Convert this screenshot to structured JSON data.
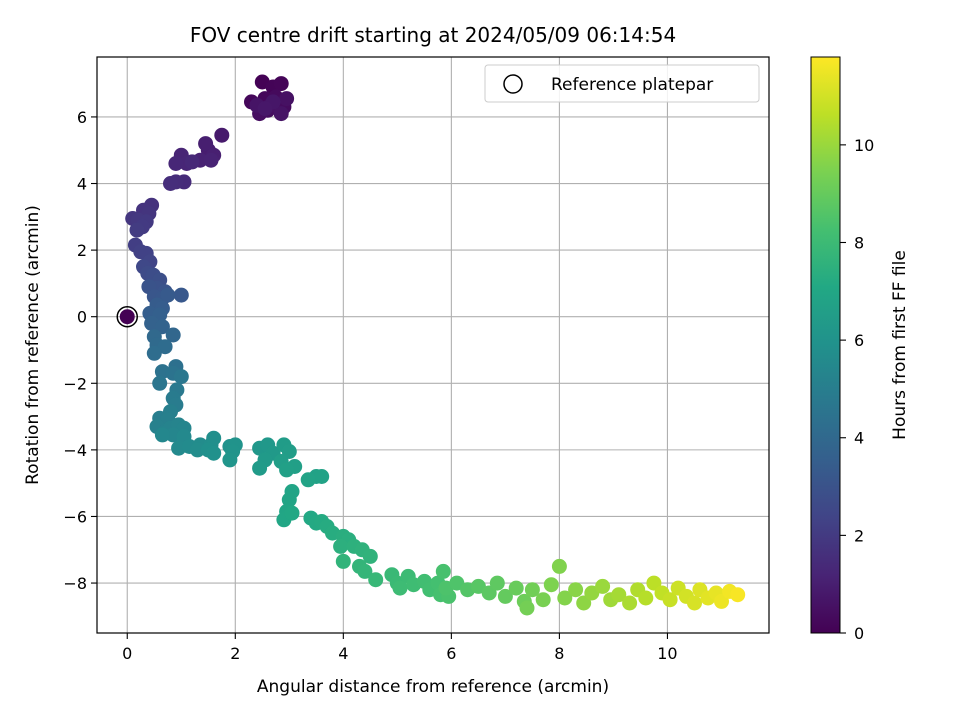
{
  "chart_data": {
    "type": "scatter",
    "title": "FOV centre drift starting at 2024/05/09 06:14:54",
    "xlabel": "Angular distance from reference (arcmin)",
    "ylabel": "Rotation from reference (arcmin)",
    "xlim": [
      -0.56,
      11.88
    ],
    "ylim": [
      -9.5,
      7.8
    ],
    "xticks": [
      0,
      2,
      4,
      6,
      8,
      10
    ],
    "yticks": [
      -8,
      -6,
      -4,
      -2,
      0,
      2,
      4,
      6
    ],
    "grid": true,
    "legend": {
      "position": "top-right",
      "entries": [
        "Reference platepar"
      ]
    },
    "reference_point": {
      "x": 0,
      "y": 0,
      "label": "Reference platepar"
    },
    "colorbar": {
      "label": "Hours from first FF file",
      "colormap": "viridis",
      "range": [
        0,
        11.8
      ],
      "ticks": [
        0,
        2,
        4,
        6,
        8,
        10
      ]
    },
    "series": [
      {
        "color_by": "hours",
        "points": [
          {
            "x": 2.5,
            "y": 7.05,
            "c": 0.05
          },
          {
            "x": 2.7,
            "y": 6.9,
            "c": 0.1
          },
          {
            "x": 2.85,
            "y": 7.0,
            "c": 0.15
          },
          {
            "x": 2.3,
            "y": 6.45,
            "c": 0.2
          },
          {
            "x": 2.55,
            "y": 6.55,
            "c": 0.25
          },
          {
            "x": 2.75,
            "y": 6.6,
            "c": 0.3
          },
          {
            "x": 2.9,
            "y": 6.3,
            "c": 0.35
          },
          {
            "x": 2.6,
            "y": 6.2,
            "c": 0.4
          },
          {
            "x": 2.45,
            "y": 6.1,
            "c": 0.45
          },
          {
            "x": 2.65,
            "y": 6.35,
            "c": 0.5
          },
          {
            "x": 2.95,
            "y": 6.55,
            "c": 0.55
          },
          {
            "x": 2.85,
            "y": 6.1,
            "c": 0.6
          },
          {
            "x": 2.4,
            "y": 6.35,
            "c": 0.65
          },
          {
            "x": 2.7,
            "y": 6.45,
            "c": 0.7
          },
          {
            "x": 2.55,
            "y": 6.25,
            "c": 0.75
          },
          {
            "x": 1.75,
            "y": 5.45,
            "c": 0.85
          },
          {
            "x": 1.5,
            "y": 5.0,
            "c": 0.95
          },
          {
            "x": 1.45,
            "y": 5.2,
            "c": 1.0
          },
          {
            "x": 1.6,
            "y": 4.85,
            "c": 1.05
          },
          {
            "x": 1.35,
            "y": 4.7,
            "c": 1.1
          },
          {
            "x": 1.55,
            "y": 4.7,
            "c": 1.15
          },
          {
            "x": 1.0,
            "y": 4.85,
            "c": 1.2
          },
          {
            "x": 1.1,
            "y": 4.6,
            "c": 1.25
          },
          {
            "x": 0.9,
            "y": 4.6,
            "c": 1.3
          },
          {
            "x": 1.2,
            "y": 4.65,
            "c": 1.35
          },
          {
            "x": 1.05,
            "y": 4.05,
            "c": 1.45
          },
          {
            "x": 0.9,
            "y": 4.05,
            "c": 1.5
          },
          {
            "x": 0.8,
            "y": 4.0,
            "c": 1.55
          },
          {
            "x": 0.45,
            "y": 3.35,
            "c": 1.7
          },
          {
            "x": 0.3,
            "y": 3.2,
            "c": 1.75
          },
          {
            "x": 0.4,
            "y": 3.1,
            "c": 1.8
          },
          {
            "x": 0.1,
            "y": 2.95,
            "c": 1.85
          },
          {
            "x": 0.2,
            "y": 2.9,
            "c": 1.9
          },
          {
            "x": 0.35,
            "y": 2.85,
            "c": 1.95
          },
          {
            "x": 0.28,
            "y": 2.7,
            "c": 2.0
          },
          {
            "x": 0.18,
            "y": 2.6,
            "c": 2.05
          },
          {
            "x": 0.15,
            "y": 2.15,
            "c": 2.15
          },
          {
            "x": 0.25,
            "y": 1.95,
            "c": 2.25
          },
          {
            "x": 0.35,
            "y": 1.9,
            "c": 2.3
          },
          {
            "x": 0.42,
            "y": 1.65,
            "c": 2.4
          },
          {
            "x": 0.3,
            "y": 1.5,
            "c": 2.55
          },
          {
            "x": 0.38,
            "y": 1.3,
            "c": 2.65
          },
          {
            "x": 0.48,
            "y": 1.25,
            "c": 2.75
          },
          {
            "x": 0.6,
            "y": 1.1,
            "c": 2.85
          },
          {
            "x": 0.55,
            "y": 0.85,
            "c": 2.95
          },
          {
            "x": 0.4,
            "y": 0.9,
            "c": 3.0
          },
          {
            "x": 0.7,
            "y": 0.75,
            "c": 3.05
          },
          {
            "x": 0.5,
            "y": 0.6,
            "c": 3.15
          },
          {
            "x": 0.65,
            "y": 0.55,
            "c": 3.2
          },
          {
            "x": 1.0,
            "y": 0.65,
            "c": 3.25
          },
          {
            "x": 0.75,
            "y": 0.65,
            "c": 3.3
          },
          {
            "x": 0.55,
            "y": 0.35,
            "c": 3.4
          },
          {
            "x": 0.65,
            "y": 0.25,
            "c": 3.45
          },
          {
            "x": 0.42,
            "y": 0.1,
            "c": 3.5
          },
          {
            "x": 0.6,
            "y": 0.05,
            "c": 3.6
          },
          {
            "x": 0.45,
            "y": -0.2,
            "c": 3.7
          },
          {
            "x": 0.65,
            "y": -0.3,
            "c": 3.75
          },
          {
            "x": 0.85,
            "y": -0.55,
            "c": 3.9
          },
          {
            "x": 0.5,
            "y": -0.6,
            "c": 4.0
          },
          {
            "x": 0.55,
            "y": -0.85,
            "c": 4.05
          },
          {
            "x": 0.7,
            "y": -0.9,
            "c": 4.15
          },
          {
            "x": 0.5,
            "y": -1.1,
            "c": 4.2
          },
          {
            "x": 0.9,
            "y": -1.5,
            "c": 4.35
          },
          {
            "x": 0.65,
            "y": -1.65,
            "c": 4.45
          },
          {
            "x": 0.85,
            "y": -1.7,
            "c": 4.5
          },
          {
            "x": 0.6,
            "y": -2.0,
            "c": 4.6
          },
          {
            "x": 1.0,
            "y": -1.8,
            "c": 4.65
          },
          {
            "x": 0.92,
            "y": -2.2,
            "c": 4.75
          },
          {
            "x": 0.85,
            "y": -2.45,
            "c": 4.85
          },
          {
            "x": 0.9,
            "y": -2.65,
            "c": 4.9
          },
          {
            "x": 0.6,
            "y": -3.05,
            "c": 5.0
          },
          {
            "x": 0.8,
            "y": -2.85,
            "c": 5.05
          },
          {
            "x": 0.75,
            "y": -3.1,
            "c": 5.1
          },
          {
            "x": 0.55,
            "y": -3.3,
            "c": 5.15
          },
          {
            "x": 0.7,
            "y": -3.45,
            "c": 5.2
          },
          {
            "x": 0.8,
            "y": -3.35,
            "c": 5.25
          },
          {
            "x": 0.95,
            "y": -3.25,
            "c": 5.3
          },
          {
            "x": 1.05,
            "y": -3.35,
            "c": 5.35
          },
          {
            "x": 0.85,
            "y": -3.55,
            "c": 5.4
          },
          {
            "x": 0.65,
            "y": -3.55,
            "c": 5.45
          },
          {
            "x": 1.05,
            "y": -3.6,
            "c": 5.5
          },
          {
            "x": 0.95,
            "y": -3.95,
            "c": 5.55
          },
          {
            "x": 1.15,
            "y": -3.9,
            "c": 5.6
          },
          {
            "x": 1.35,
            "y": -3.85,
            "c": 5.65
          },
          {
            "x": 1.3,
            "y": -4.0,
            "c": 5.7
          },
          {
            "x": 1.55,
            "y": -3.85,
            "c": 5.75
          },
          {
            "x": 1.6,
            "y": -3.65,
            "c": 5.8
          },
          {
            "x": 1.5,
            "y": -4.0,
            "c": 5.85
          },
          {
            "x": 1.6,
            "y": -4.1,
            "c": 5.9
          },
          {
            "x": 1.9,
            "y": -3.9,
            "c": 5.95
          },
          {
            "x": 2.0,
            "y": -3.85,
            "c": 6.0
          },
          {
            "x": 1.95,
            "y": -4.05,
            "c": 6.05
          },
          {
            "x": 1.9,
            "y": -4.3,
            "c": 6.1
          },
          {
            "x": 2.45,
            "y": -3.95,
            "c": 6.2
          },
          {
            "x": 2.6,
            "y": -3.85,
            "c": 6.25
          },
          {
            "x": 2.7,
            "y": -4.1,
            "c": 6.3
          },
          {
            "x": 2.55,
            "y": -4.3,
            "c": 6.35
          },
          {
            "x": 2.45,
            "y": -4.55,
            "c": 6.4
          },
          {
            "x": 2.9,
            "y": -3.85,
            "c": 6.45
          },
          {
            "x": 3.0,
            "y": -4.05,
            "c": 6.5
          },
          {
            "x": 2.85,
            "y": -4.35,
            "c": 6.55
          },
          {
            "x": 3.1,
            "y": -4.5,
            "c": 6.6
          },
          {
            "x": 2.95,
            "y": -4.6,
            "c": 6.65
          },
          {
            "x": 3.5,
            "y": -4.8,
            "c": 6.7
          },
          {
            "x": 3.6,
            "y": -4.8,
            "c": 6.75
          },
          {
            "x": 3.35,
            "y": -4.9,
            "c": 6.8
          },
          {
            "x": 3.05,
            "y": -5.25,
            "c": 6.85
          },
          {
            "x": 3.0,
            "y": -5.5,
            "c": 6.9
          },
          {
            "x": 2.95,
            "y": -5.85,
            "c": 6.95
          },
          {
            "x": 2.9,
            "y": -6.1,
            "c": 7.0
          },
          {
            "x": 3.05,
            "y": -5.9,
            "c": 7.05
          },
          {
            "x": 3.4,
            "y": -6.05,
            "c": 7.1
          },
          {
            "x": 3.5,
            "y": -6.2,
            "c": 7.15
          },
          {
            "x": 3.6,
            "y": -6.15,
            "c": 7.2
          },
          {
            "x": 3.7,
            "y": -6.3,
            "c": 7.25
          },
          {
            "x": 3.8,
            "y": -6.5,
            "c": 7.3
          },
          {
            "x": 4.0,
            "y": -6.6,
            "c": 7.35
          },
          {
            "x": 4.1,
            "y": -6.7,
            "c": 7.4
          },
          {
            "x": 3.95,
            "y": -6.9,
            "c": 7.45
          },
          {
            "x": 4.2,
            "y": -6.9,
            "c": 7.5
          },
          {
            "x": 4.35,
            "y": -7.0,
            "c": 7.55
          },
          {
            "x": 4.5,
            "y": -7.2,
            "c": 7.6
          },
          {
            "x": 4.0,
            "y": -7.35,
            "c": 7.65
          },
          {
            "x": 4.3,
            "y": -7.5,
            "c": 7.7
          },
          {
            "x": 4.4,
            "y": -7.65,
            "c": 7.75
          },
          {
            "x": 4.6,
            "y": -7.9,
            "c": 7.85
          },
          {
            "x": 4.9,
            "y": -7.75,
            "c": 7.9
          },
          {
            "x": 5.0,
            "y": -8.0,
            "c": 7.95
          },
          {
            "x": 5.2,
            "y": -7.8,
            "c": 8.0
          },
          {
            "x": 5.05,
            "y": -8.15,
            "c": 8.05
          },
          {
            "x": 5.3,
            "y": -8.05,
            "c": 8.1
          },
          {
            "x": 5.5,
            "y": -7.95,
            "c": 8.15
          },
          {
            "x": 5.6,
            "y": -8.2,
            "c": 8.2
          },
          {
            "x": 5.75,
            "y": -8.0,
            "c": 8.25
          },
          {
            "x": 5.8,
            "y": -8.35,
            "c": 8.3
          },
          {
            "x": 5.85,
            "y": -7.65,
            "c": 8.35
          },
          {
            "x": 5.95,
            "y": -8.4,
            "c": 8.4
          },
          {
            "x": 5.9,
            "y": -8.15,
            "c": 8.45
          },
          {
            "x": 6.1,
            "y": -8.0,
            "c": 8.5
          },
          {
            "x": 6.3,
            "y": -8.2,
            "c": 8.6
          },
          {
            "x": 6.5,
            "y": -8.1,
            "c": 8.7
          },
          {
            "x": 6.7,
            "y": -8.3,
            "c": 8.8
          },
          {
            "x": 6.85,
            "y": -8.0,
            "c": 8.85
          },
          {
            "x": 7.0,
            "y": -8.4,
            "c": 8.95
          },
          {
            "x": 7.2,
            "y": -8.15,
            "c": 9.05
          },
          {
            "x": 7.35,
            "y": -8.55,
            "c": 9.15
          },
          {
            "x": 7.5,
            "y": -8.2,
            "c": 9.25
          },
          {
            "x": 7.4,
            "y": -8.75,
            "c": 9.3
          },
          {
            "x": 7.7,
            "y": -8.5,
            "c": 9.4
          },
          {
            "x": 7.85,
            "y": -8.05,
            "c": 9.5
          },
          {
            "x": 8.0,
            "y": -7.5,
            "c": 9.55
          },
          {
            "x": 8.1,
            "y": -8.45,
            "c": 9.6
          },
          {
            "x": 8.3,
            "y": -8.2,
            "c": 9.7
          },
          {
            "x": 8.45,
            "y": -8.6,
            "c": 9.8
          },
          {
            "x": 8.6,
            "y": -8.3,
            "c": 9.9
          },
          {
            "x": 8.8,
            "y": -8.1,
            "c": 10.0
          },
          {
            "x": 8.95,
            "y": -8.5,
            "c": 10.1
          },
          {
            "x": 9.1,
            "y": -8.35,
            "c": 10.2
          },
          {
            "x": 9.3,
            "y": -8.6,
            "c": 10.3
          },
          {
            "x": 9.45,
            "y": -8.2,
            "c": 10.4
          },
          {
            "x": 9.6,
            "y": -8.45,
            "c": 10.5
          },
          {
            "x": 9.75,
            "y": -8.0,
            "c": 10.6
          },
          {
            "x": 9.9,
            "y": -8.3,
            "c": 10.7
          },
          {
            "x": 10.05,
            "y": -8.5,
            "c": 10.8
          },
          {
            "x": 10.2,
            "y": -8.15,
            "c": 10.9
          },
          {
            "x": 10.35,
            "y": -8.4,
            "c": 11.0
          },
          {
            "x": 10.5,
            "y": -8.6,
            "c": 11.1
          },
          {
            "x": 10.6,
            "y": -8.2,
            "c": 11.2
          },
          {
            "x": 10.75,
            "y": -8.45,
            "c": 11.3
          },
          {
            "x": 10.9,
            "y": -8.3,
            "c": 11.4
          },
          {
            "x": 11.0,
            "y": -8.55,
            "c": 11.5
          },
          {
            "x": 11.15,
            "y": -8.25,
            "c": 11.6
          },
          {
            "x": 11.3,
            "y": -8.35,
            "c": 11.7
          }
        ]
      }
    ]
  }
}
